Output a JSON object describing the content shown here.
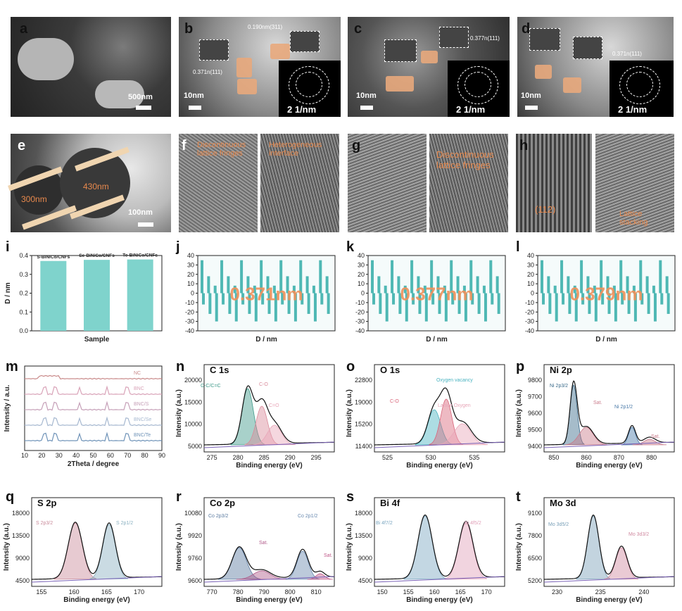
{
  "row1": {
    "a": {
      "label": "a",
      "scale": "500nm"
    },
    "b": {
      "label": "b",
      "scale": "10nm",
      "saed": "2 1/nm",
      "ann1": "0.190nm(311)",
      "ann2": "0.371n(111)"
    },
    "c": {
      "label": "c",
      "scale": "10nm",
      "saed": "2 1/nm",
      "ann1": "0.377n(111)"
    },
    "d": {
      "label": "d",
      "scale": "10nm",
      "saed": "2 1/nm",
      "ann1": "0.371n(111)"
    }
  },
  "row2": {
    "e": {
      "label": "e",
      "scale": "100nm",
      "d1": "300nm",
      "d2": "430nm"
    },
    "f": {
      "label": "f",
      "t1": "Discontinuous lattice fringes",
      "t2": "Heterogeneous interface"
    },
    "g": {
      "label": "g",
      "t1": "Discontinuous lattice fringes"
    },
    "h": {
      "label": "h",
      "t1": "(112)",
      "t2": "Lattice stacking"
    }
  },
  "chart_data": [
    {
      "panel": "i",
      "type": "bar",
      "categories": [
        "S-BiNiCo/CNFs",
        "Se-BiNiCo/CNFs",
        "Te-BiNiCo/CNFs"
      ],
      "values": [
        0.371,
        0.377,
        0.379
      ],
      "xlabel": "Sample",
      "ylabel": "D / nm",
      "ylim": [
        0,
        0.4
      ],
      "yticks": [
        "0.0",
        "0.1",
        "0.2",
        "0.3",
        "0.4"
      ],
      "color": "#7fd3cc"
    },
    {
      "panel": "j",
      "type": "bar",
      "annotation": "0.371nm",
      "xlabel": "D / nm",
      "ylim": [
        -40,
        40
      ],
      "yticks": [
        "40",
        "30",
        "20",
        "10",
        "0",
        "-10",
        "-20",
        "-30",
        "-40"
      ]
    },
    {
      "panel": "k",
      "type": "bar",
      "annotation": "0.377nm",
      "xlabel": "D / nm",
      "ylim": [
        -40,
        40
      ],
      "yticks": [
        "40",
        "30",
        "20",
        "10",
        "0",
        "-10",
        "-20",
        "-30",
        "-40"
      ]
    },
    {
      "panel": "l",
      "type": "bar",
      "annotation": "0.379nm",
      "xlabel": "D / nm",
      "ylim": [
        -40,
        40
      ],
      "yticks": [
        "40",
        "30",
        "20",
        "10",
        "0",
        "-10",
        "-20",
        "-30",
        "-40"
      ]
    },
    {
      "panel": "m",
      "type": "line",
      "xlabel": "2Theta / degree",
      "ylabel": "Intensity / a.u.",
      "xticks": [
        "10",
        "20",
        "30",
        "40",
        "50",
        "60",
        "70",
        "80",
        "90"
      ],
      "series": [
        {
          "name": "NC"
        },
        {
          "name": "BNC"
        },
        {
          "name": "BNC/S"
        },
        {
          "name": "BNC/Se"
        },
        {
          "name": "BNC/Te"
        }
      ]
    },
    {
      "panel": "n",
      "type": "line",
      "title": "C 1s",
      "xlabel": "Binding energy (eV)",
      "ylabel": "Intensity (a.u.)",
      "xticks": [
        "275",
        "280",
        "285",
        "290",
        "295"
      ],
      "yticks": [
        "20000",
        "15000",
        "10000",
        "5000"
      ],
      "peaks": [
        "C-C/C=C",
        "C-O",
        "C=O"
      ]
    },
    {
      "panel": "o",
      "type": "line",
      "title": "O 1s",
      "xlabel": "Binding energy (eV)",
      "ylabel": "Intensity (a.u.)",
      "xticks": [
        "525",
        "530",
        "535"
      ],
      "yticks": [
        "22800",
        "19000",
        "15200",
        "11400"
      ],
      "peaks": [
        "Oxygen vacancy",
        "C-O",
        "Lattice Oxygen"
      ]
    },
    {
      "panel": "p",
      "type": "line",
      "title": "Ni 2p",
      "xlabel": "Binding energy (eV)",
      "ylabel": "Intensity (a.u.)",
      "xticks": [
        "850",
        "860",
        "870",
        "880"
      ],
      "yticks": [
        "9800",
        "9700",
        "9600",
        "9500",
        "9400"
      ],
      "peaks": [
        "Ni 2p3/2",
        "Sat.",
        "Ni 2p1/2",
        "Sat."
      ]
    },
    {
      "panel": "q",
      "type": "line",
      "title": "S 2p",
      "xlabel": "Binding energy (eV)",
      "ylabel": "Intensity (a.u.)",
      "xticks": [
        "155",
        "160",
        "165",
        "170"
      ],
      "yticks": [
        "18000",
        "13500",
        "9000",
        "4500"
      ],
      "peaks": [
        "S 2p3/2",
        "S 2p1/2"
      ]
    },
    {
      "panel": "r",
      "type": "line",
      "title": "Co 2p",
      "xlabel": "Binding energy (eV)",
      "ylabel": "Intensity (a.u.)",
      "xticks": [
        "770",
        "780",
        "790",
        "800",
        "810"
      ],
      "yticks": [
        "10080",
        "9920",
        "9760",
        "9600"
      ],
      "peaks": [
        "Co 2p3/2",
        "Sat.",
        "Co 2p1/2",
        "Sat."
      ]
    },
    {
      "panel": "s",
      "type": "line",
      "title": "Bi 4f",
      "xlabel": "Binding energy (eV)",
      "ylabel": "Intensity (a.u.)",
      "xticks": [
        "150",
        "155",
        "160",
        "165",
        "170"
      ],
      "yticks": [
        "18000",
        "13500",
        "9000",
        "4500"
      ],
      "peaks": [
        "Bi 4f7/2",
        "Bi 4f5/2"
      ]
    },
    {
      "panel": "t",
      "type": "line",
      "title": "Mo 3d",
      "xlabel": "Binding energy (eV)",
      "ylabel": "Intensity (a.u.)",
      "xticks": [
        "230",
        "235",
        "240"
      ],
      "yticks": [
        "9100",
        "7800",
        "6500",
        "5200"
      ],
      "peaks": [
        "Mo 3d5/2",
        "Mo 3d3/2"
      ]
    }
  ],
  "labels": {
    "i": "i",
    "j": "j",
    "k": "k",
    "l": "l",
    "m": "m",
    "n": "n",
    "o": "o",
    "p": "p",
    "q": "q",
    "r": "r",
    "s": "s",
    "t": "t"
  }
}
